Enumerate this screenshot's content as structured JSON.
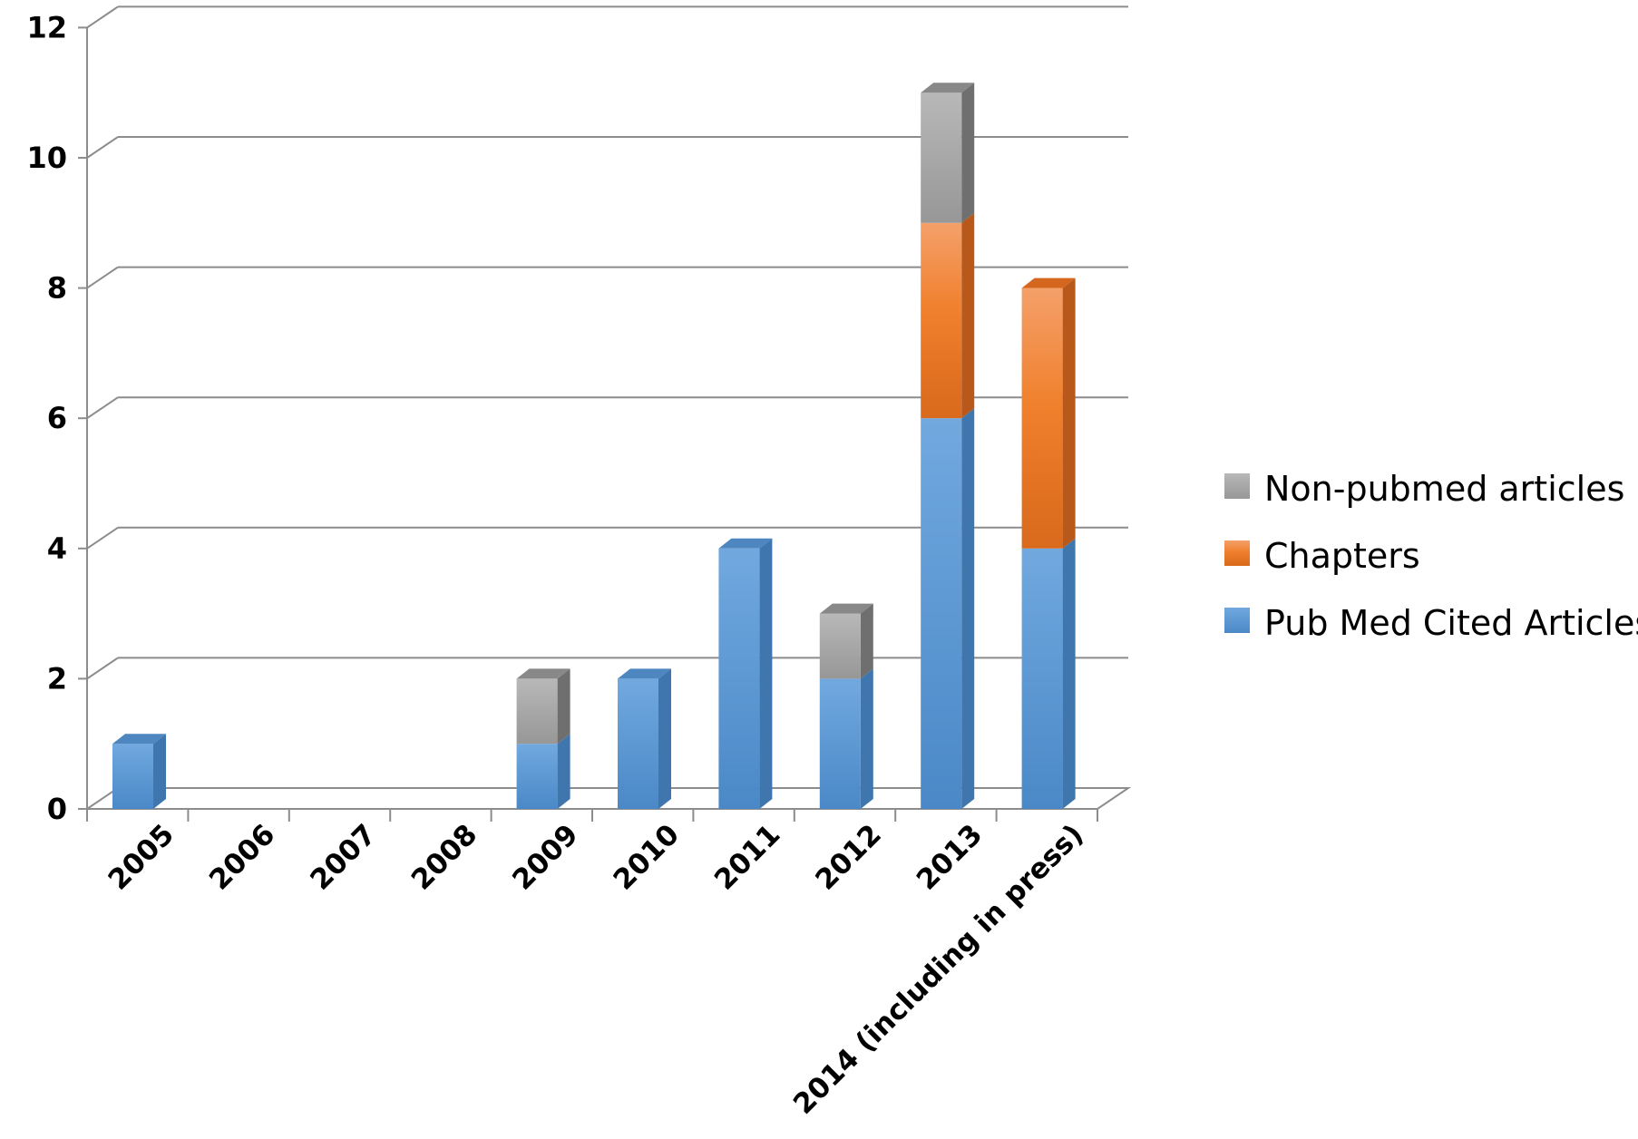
{
  "chart_data": {
    "type": "bar",
    "stacked": true,
    "three_d": true,
    "title": "",
    "xlabel": "",
    "ylabel": "",
    "ylim": [
      0,
      12
    ],
    "yticks": [
      0,
      2,
      4,
      6,
      8,
      10,
      12
    ],
    "grid": true,
    "legend_position": "right",
    "categories": [
      "2005",
      "2006",
      "2007",
      "2008",
      "2009",
      "2010",
      "2011",
      "2012",
      "2013",
      "2014 (including in press)"
    ],
    "series": [
      {
        "name": "Pub Med Cited Articles",
        "color": "#5B9BD5",
        "values": [
          1,
          0,
          0,
          0,
          1,
          2,
          4,
          2,
          6,
          4
        ]
      },
      {
        "name": "Chapters",
        "color": "#ED7D31",
        "values": [
          0,
          0,
          0,
          0,
          0,
          0,
          0,
          0,
          3,
          4
        ]
      },
      {
        "name": "Non-pubmed articles",
        "color": "#A5A5A5",
        "values": [
          0,
          0,
          0,
          0,
          1,
          0,
          0,
          1,
          2,
          0
        ]
      }
    ],
    "legend_order": [
      "Non-pubmed articles",
      "Chapters",
      "Pub Med Cited Articles"
    ]
  }
}
